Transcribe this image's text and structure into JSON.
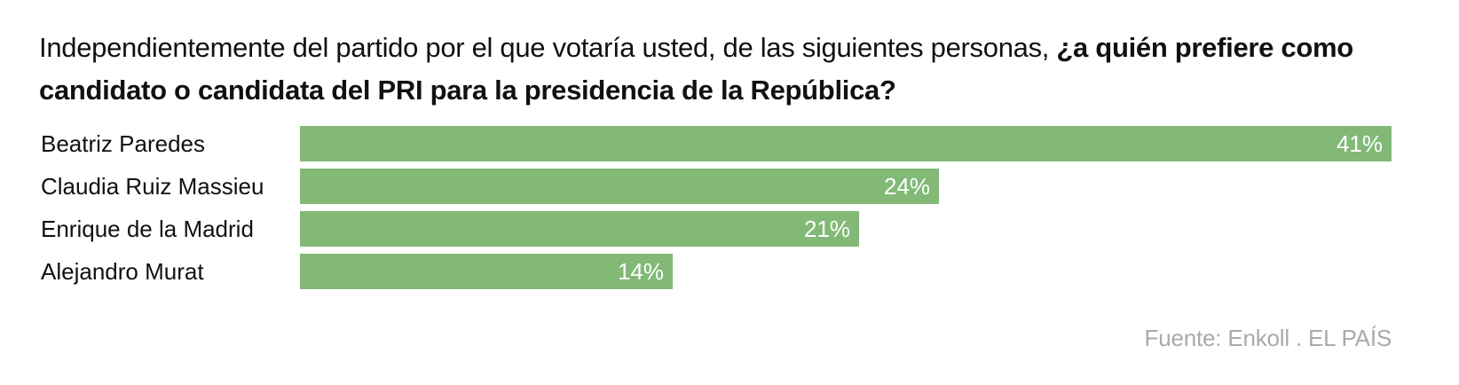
{
  "title": {
    "regular": "Independientemente del partido por el que votaría usted, de las siguientes personas,",
    "bold": "¿a quién prefiere como candidato o candidata del PRI para la presidencia de la República?"
  },
  "chart_data": {
    "type": "bar",
    "orientation": "horizontal",
    "categories": [
      "Beatriz Paredes",
      "Claudia Ruiz Massieu",
      "Enrique de la Madrid",
      "Alejandro Murat"
    ],
    "values": [
      41,
      24,
      21,
      14
    ],
    "value_labels": [
      "41%",
      "24%",
      "21%",
      "14%"
    ],
    "unit": "%",
    "xlim": [
      0,
      41
    ],
    "grid": false,
    "legend": "none",
    "bar_color": "#82b977"
  },
  "source": "Fuente: Enkoll . EL PAÍS"
}
